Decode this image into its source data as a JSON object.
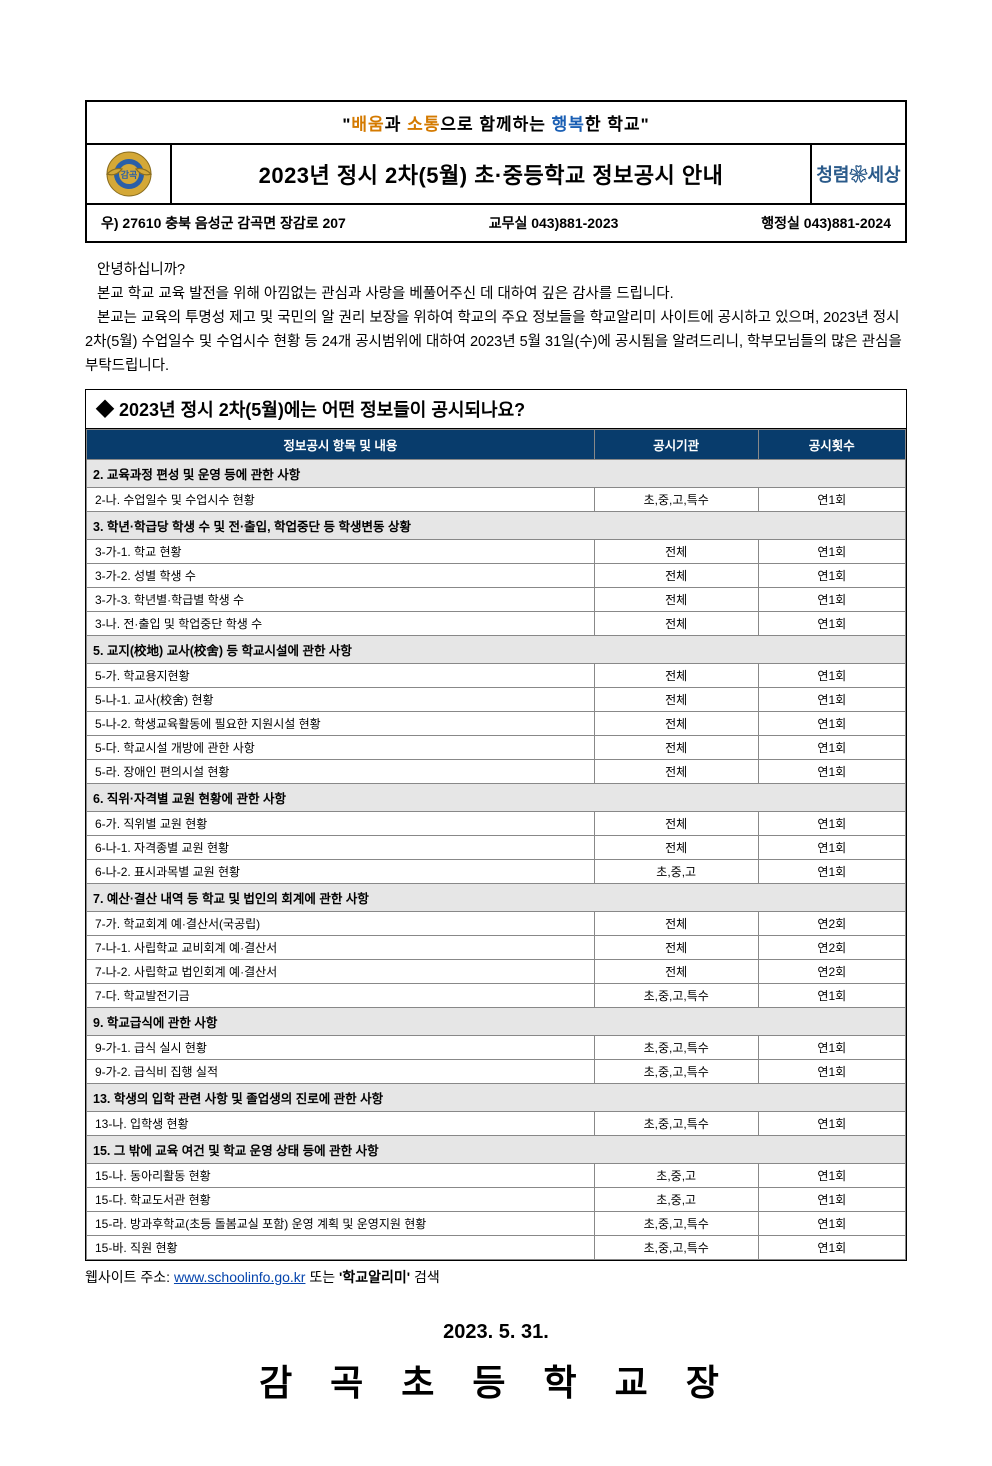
{
  "slogan": {
    "q1": "\"",
    "p1": "배움",
    "t1": "과 ",
    "p2": "소통",
    "t2": "으로 함께하는 ",
    "p3": "행복",
    "t3": "한 학교\""
  },
  "title": "2023년 정시 2차(5월) 초·중등학교 정보공시 안내",
  "right_logo_text": "청렴❀세상",
  "address": "우) 27610  충북 음성군 감곡면 장감로 207",
  "phone1": "교무실 043)881-2023",
  "phone2": "행정실 043)881-2024",
  "intro": {
    "l1": "안녕하십니까?",
    "l2": "본교 학교 교육 발전을 위해 아낌없는 관심과 사랑을 베풀어주신 데 대하여 깊은 감사를 드립니다.",
    "l3": "본교는 교육의 투명성 제고 및 국민의 알 권리 보장을 위하여 학교의 주요 정보들을 학교알리미 사이트에 공시하고 있으며, 2023년 정시 2차(5월) 수업일수 및 수업시수 현황 등 24개 공시범위에 대하여 2023년 5월 31일(수)에 공시됨을 알려드리니, 학부모님들의 많은 관심을 부탁드립니다."
  },
  "section_title": "◆  2023년 정시 2차(5월)에는 어떤 정보들이 공시되나요?",
  "headers": {
    "item": "정보공시 항목 및 내용",
    "org": "공시기관",
    "freq": "공시횟수"
  },
  "rows": [
    {
      "type": "cat",
      "label": "2. 교육과정 편성 및 운영 등에 관한 사항"
    },
    {
      "type": "item",
      "label": "2-나. 수업일수 및 수업시수 현황",
      "org": "초,중,고,특수",
      "freq": "연1회"
    },
    {
      "type": "cat",
      "label": "3. 학년·학급당 학생 수 및 전·출입, 학업중단 등 학생변동 상황"
    },
    {
      "type": "item",
      "label": "3-가-1. 학교 현황",
      "org": "전체",
      "freq": "연1회"
    },
    {
      "type": "item",
      "label": "3-가-2. 성별 학생 수",
      "org": "전체",
      "freq": "연1회"
    },
    {
      "type": "item",
      "label": "3-가-3. 학년별·학급별 학생 수",
      "org": "전체",
      "freq": "연1회"
    },
    {
      "type": "item",
      "label": "3-나. 전·출입 및 학업중단 학생 수",
      "org": "전체",
      "freq": "연1회"
    },
    {
      "type": "cat",
      "label": "5. 교지(校地) 교사(校舍) 등 학교시설에 관한 사항"
    },
    {
      "type": "item",
      "label": "5-가. 학교용지현황",
      "org": "전체",
      "freq": "연1회"
    },
    {
      "type": "item",
      "label": "5-나-1. 교사(校舍) 현황",
      "org": "전체",
      "freq": "연1회"
    },
    {
      "type": "item",
      "label": "5-나-2. 학생교육활동에 필요한 지원시설 현황",
      "org": "전체",
      "freq": "연1회"
    },
    {
      "type": "item",
      "label": "5-다. 학교시설 개방에 관한 사항",
      "org": "전체",
      "freq": "연1회"
    },
    {
      "type": "item",
      "label": "5-라. 장애인 편의시설 현황",
      "org": "전체",
      "freq": "연1회"
    },
    {
      "type": "cat",
      "label": "6. 직위·자격별 교원 현황에 관한 사항"
    },
    {
      "type": "item",
      "label": "6-가. 직위별 교원 현황",
      "org": "전체",
      "freq": "연1회"
    },
    {
      "type": "item",
      "label": "6-나-1. 자격종별 교원 현황",
      "org": "전체",
      "freq": "연1회"
    },
    {
      "type": "item",
      "label": "6-나-2. 표시과목별 교원 현황",
      "org": "초,중,고",
      "freq": "연1회"
    },
    {
      "type": "cat",
      "label": "7. 예산·결산 내역 등 학교 및 법인의 회계에 관한 사항"
    },
    {
      "type": "item",
      "label": "7-가. 학교회계 예·결산서(국공립)",
      "org": "전체",
      "freq": "연2회"
    },
    {
      "type": "item",
      "label": "7-나-1. 사립학교 교비회계 예·결산서",
      "org": "전체",
      "freq": "연2회"
    },
    {
      "type": "item",
      "label": "7-나-2. 사립학교 법인회계 예·결산서",
      "org": "전체",
      "freq": "연2회"
    },
    {
      "type": "item",
      "label": "7-다. 학교발전기금",
      "org": "초,중,고,특수",
      "freq": "연1회"
    },
    {
      "type": "cat",
      "label": "9. 학교급식에 관한 사항"
    },
    {
      "type": "item",
      "label": "9-가-1. 급식 실시 현황",
      "org": "초,중,고,특수",
      "freq": "연1회"
    },
    {
      "type": "item",
      "label": "9-가-2. 급식비 집행 실적",
      "org": "초,중,고,특수",
      "freq": "연1회"
    },
    {
      "type": "cat",
      "label": "13. 학생의 입학 관련 사항 및 졸업생의 진로에 관한 사항"
    },
    {
      "type": "item",
      "label": "13-나. 입학생 현황",
      "org": "초,중,고,특수",
      "freq": "연1회"
    },
    {
      "type": "cat",
      "label": "15. 그 밖에 교육 여건 및 학교 운영 상태 등에 관한 사항"
    },
    {
      "type": "item",
      "label": "15-나. 동아리활동 현황",
      "org": "초,중,고",
      "freq": "연1회"
    },
    {
      "type": "item",
      "label": "15-다. 학교도서관 현황",
      "org": "초,중,고",
      "freq": "연1회"
    },
    {
      "type": "item",
      "label": "15-라. 방과후학교(초등 돌봄교실 포함) 운영 계획 및 운영지원 현황",
      "org": "초,중,고,특수",
      "freq": "연1회"
    },
    {
      "type": "item",
      "label": "15-바. 직원 현황",
      "org": "초,중,고,특수",
      "freq": "연1회"
    }
  ],
  "website": {
    "prefix": "웹사이트 주소: ",
    "url_text": "www.schoolinfo.go.kr",
    "suffix1": "   또는   ",
    "bold": "'학교알리미'",
    "suffix2": "   검색"
  },
  "date": "2023. 5. 31.",
  "signature": "감 곡 초 등 학 교 장"
}
